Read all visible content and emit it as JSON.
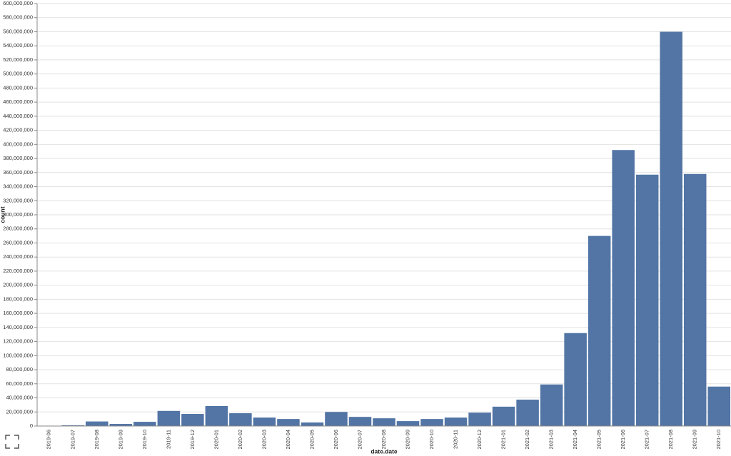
{
  "chart_data": {
    "type": "bar",
    "x_label": "date.date",
    "y_label": "count",
    "categories": [
      "2019-06",
      "2019-07",
      "2019-08",
      "2019-09",
      "2019-10",
      "2019-11",
      "2019-12",
      "2020-01",
      "2020-02",
      "2020-03",
      "2020-04",
      "2020-05",
      "2020-06",
      "2020-07",
      "2020-08",
      "2020-09",
      "2020-10",
      "2020-11",
      "2020-12",
      "2021-01",
      "2021-02",
      "2021-03",
      "2021-04",
      "2021-05",
      "2021-06",
      "2021-07",
      "2021-08",
      "2021-09",
      "2021-10"
    ],
    "values": [
      300000,
      1000000,
      6500000,
      3000000,
      6000000,
      21500000,
      17200000,
      28400000,
      18200000,
      12000000,
      10000000,
      5000000,
      20000000,
      13000000,
      11000000,
      7000000,
      10000000,
      12000000,
      19000000,
      27500000,
      37500000,
      59000000,
      132000000,
      270000000,
      392000000,
      357000000,
      560000000,
      358000000,
      56000000
    ],
    "color": "#5275a5",
    "ylim": [
      0,
      600000000
    ],
    "yticks": [
      {
        "value": 0,
        "label": "0"
      },
      {
        "value": 20000000,
        "label": "20,000,000"
      },
      {
        "value": 40000000,
        "label": "40,000,000"
      },
      {
        "value": 60000000,
        "label": "60,000,000"
      },
      {
        "value": 80000000,
        "label": "80,000,000"
      },
      {
        "value": 100000000,
        "label": "100,000,000"
      },
      {
        "value": 120000000,
        "label": "120,000,000"
      },
      {
        "value": 140000000,
        "label": "140,000,000"
      },
      {
        "value": 160000000,
        "label": "160,000,000"
      },
      {
        "value": 180000000,
        "label": "180,000,000"
      },
      {
        "value": 200000000,
        "label": "200,000,000"
      },
      {
        "value": 220000000,
        "label": "220,000,000"
      },
      {
        "value": 240000000,
        "label": "240,000,000"
      },
      {
        "value": 260000000,
        "label": "260,000,000"
      },
      {
        "value": 280000000,
        "label": "280,000,000"
      },
      {
        "value": 300000000,
        "label": "300,000,000"
      },
      {
        "value": 320000000,
        "label": "320,000,000"
      },
      {
        "value": 340000000,
        "label": "340,000,000"
      },
      {
        "value": 360000000,
        "label": "360,000,000"
      },
      {
        "value": 380000000,
        "label": "380,000,000"
      },
      {
        "value": 400000000,
        "label": "400,000,000"
      },
      {
        "value": 420000000,
        "label": "420,000,000"
      },
      {
        "value": 440000000,
        "label": "440,000,000"
      },
      {
        "value": 460000000,
        "label": "460,000,000"
      },
      {
        "value": 480000000,
        "label": "480,000,000"
      },
      {
        "value": 500000000,
        "label": "500,000,000"
      },
      {
        "value": 520000000,
        "label": "520,000,000"
      },
      {
        "value": 540000000,
        "label": "540,000,000"
      },
      {
        "value": 560000000,
        "label": "560,000,000"
      },
      {
        "value": 580000000,
        "label": "580,000,000"
      },
      {
        "value": 600000000,
        "label": "600,000,000"
      }
    ],
    "grid": true
  }
}
